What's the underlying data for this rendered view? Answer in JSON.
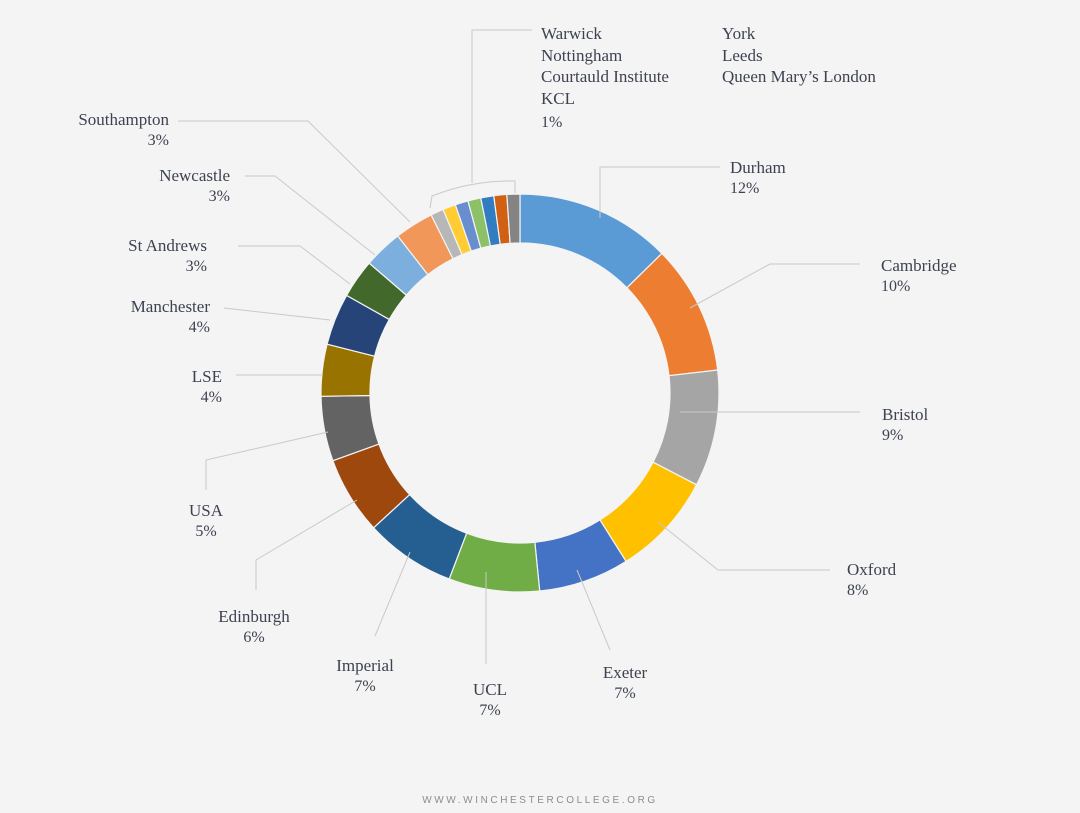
{
  "chart_data": {
    "type": "donut",
    "series": [
      {
        "name": "Durham",
        "value": 12,
        "label": "12%",
        "color": "#5b9bd5"
      },
      {
        "name": "Cambridge",
        "value": 10,
        "label": "10%",
        "color": "#ed7d31"
      },
      {
        "name": "Bristol",
        "value": 9,
        "label": "9%",
        "color": "#a5a5a5"
      },
      {
        "name": "Oxford",
        "value": 8,
        "label": "8%",
        "color": "#ffc000"
      },
      {
        "name": "Exeter",
        "value": 7,
        "label": "7%",
        "color": "#4472c4"
      },
      {
        "name": "UCL",
        "value": 7,
        "label": "7%",
        "color": "#70ad47"
      },
      {
        "name": "Imperial",
        "value": 7,
        "label": "7%",
        "color": "#255e91"
      },
      {
        "name": "Edinburgh",
        "value": 6,
        "label": "6%",
        "color": "#9e480e"
      },
      {
        "name": "USA",
        "value": 5,
        "label": "5%",
        "color": "#636363"
      },
      {
        "name": "LSE",
        "value": 4,
        "label": "4%",
        "color": "#997300"
      },
      {
        "name": "Manchester",
        "value": 4,
        "label": "4%",
        "color": "#264478"
      },
      {
        "name": "St Andrews",
        "value": 3,
        "label": "3%",
        "color": "#43682b"
      },
      {
        "name": "Newcastle",
        "value": 3,
        "label": "3%",
        "color": "#7cafdd"
      },
      {
        "name": "Southampton",
        "value": 3,
        "label": "3%",
        "color": "#f1975a"
      },
      {
        "name": "Queen Mary’s London",
        "value": 1,
        "label": "1%",
        "color": "#b7b7b7"
      },
      {
        "name": "Leeds",
        "value": 1,
        "label": "1%",
        "color": "#ffcd33"
      },
      {
        "name": "York",
        "value": 1,
        "label": "1%",
        "color": "#698ed0"
      },
      {
        "name": "KCL",
        "value": 1,
        "label": "1%",
        "color": "#8cc168"
      },
      {
        "name": "Courtauld Institute",
        "value": 1,
        "label": "1%",
        "color": "#327dc2"
      },
      {
        "name": "Nottingham",
        "value": 1,
        "label": "1%",
        "color": "#d26012"
      },
      {
        "name": "Warwick",
        "value": 1,
        "label": "1%",
        "color": "#848484"
      }
    ],
    "small_group": {
      "column_1": [
        "Warwick",
        "Nottingham",
        "Courtauld Institute",
        "KCL"
      ],
      "column_2": [
        "York",
        "Leeds",
        "Queen Mary’s London"
      ],
      "label": "1%"
    }
  },
  "footer": "WWW.WINCHESTERCOLLEGE.ORG"
}
